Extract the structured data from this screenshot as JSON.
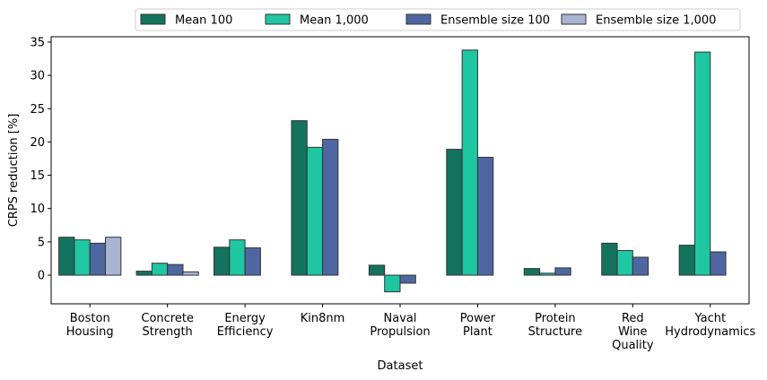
{
  "chart_data": {
    "type": "bar",
    "xlabel": "Dataset",
    "ylabel": "CRPS reduction [%]",
    "ylim": [
      -4.3,
      35.8
    ],
    "yticks": [
      0,
      5,
      10,
      15,
      20,
      25,
      30,
      35
    ],
    "categories": [
      [
        "Boston",
        "Housing"
      ],
      [
        "Concrete",
        "Strength"
      ],
      [
        "Energy",
        "Efficiency"
      ],
      [
        "Kin8nm"
      ],
      [
        "Naval",
        "Propulsion"
      ],
      [
        "Power",
        "Plant"
      ],
      [
        "Protein",
        "Structure"
      ],
      [
        "Red",
        "Wine",
        "Quality"
      ],
      [
        "Yacht",
        "Hydrodynamics"
      ]
    ],
    "series": [
      {
        "name": "Mean 100",
        "color": "#14735f",
        "values": [
          5.7,
          0.6,
          4.2,
          23.2,
          1.5,
          18.9,
          1.0,
          4.8,
          4.5
        ]
      },
      {
        "name": "Mean 1,000",
        "color": "#1fc6a2",
        "values": [
          5.3,
          1.8,
          5.3,
          19.2,
          -2.5,
          33.8,
          0.3,
          3.7,
          33.5
        ]
      },
      {
        "name": "Ensemble size 100",
        "color": "#4f67a0",
        "values": [
          4.8,
          1.6,
          4.1,
          20.4,
          -1.2,
          17.7,
          1.1,
          2.7,
          3.5
        ]
      },
      {
        "name": "Ensemble size 1,000",
        "color": "#a8b4d2",
        "values": [
          5.7,
          0.5,
          null,
          null,
          null,
          null,
          null,
          null,
          null
        ]
      }
    ],
    "legend_position": "top"
  }
}
